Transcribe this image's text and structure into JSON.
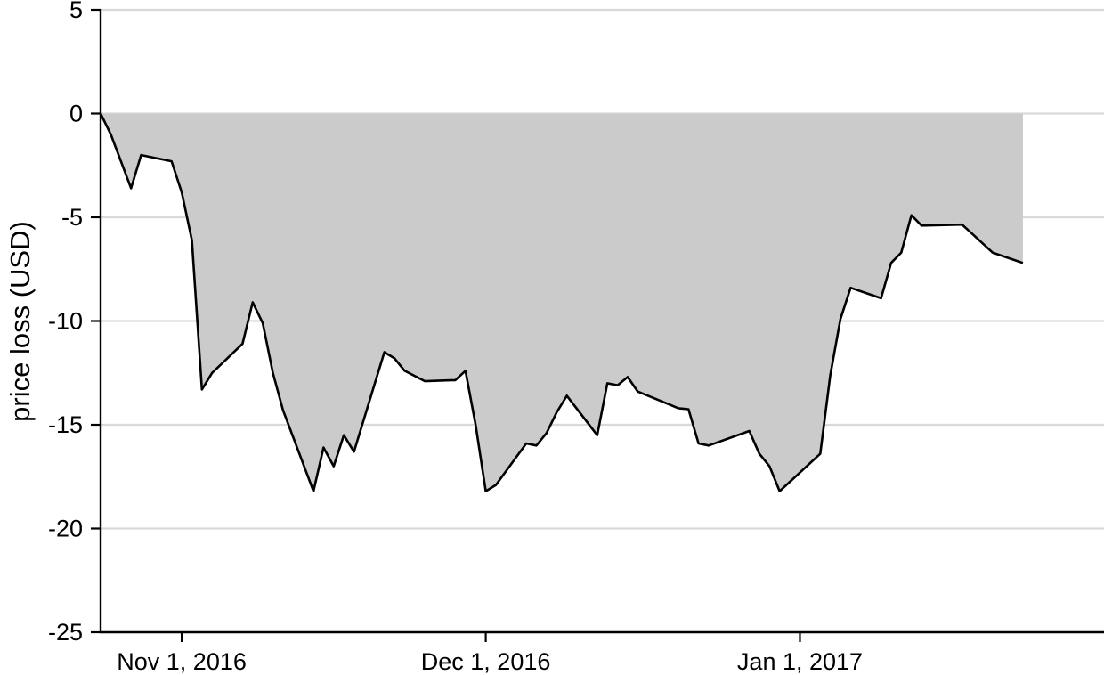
{
  "chart_data": {
    "type": "area",
    "title": "",
    "xlabel": "",
    "ylabel": "price loss (USD)",
    "ylim": [
      -25,
      5
    ],
    "yticks": [
      5,
      0,
      -5,
      -10,
      -15,
      -20,
      -25
    ],
    "ytick_labels": [
      "5",
      "0",
      "-5",
      "-10",
      "-15",
      "-20",
      "-25"
    ],
    "xlim": [
      "2016-10-24",
      "2017-01-31"
    ],
    "xticks": [
      "2016-11-01",
      "2016-12-01",
      "2017-01-01"
    ],
    "xtick_labels": [
      "Nov 1, 2016",
      "Dec 1, 2016",
      "Jan 1, 2017"
    ],
    "grid": "horizontal",
    "baseline": 0,
    "colors": {
      "fill": "#cbcbcb",
      "line": "#000000",
      "grid": "#d9d9d9",
      "axis": "#000000"
    },
    "series": [
      {
        "name": "price loss",
        "x": [
          "2016-10-24",
          "2016-10-25",
          "2016-10-26",
          "2016-10-27",
          "2016-10-28",
          "2016-10-31",
          "2016-11-01",
          "2016-11-02",
          "2016-11-03",
          "2016-11-04",
          "2016-11-07",
          "2016-11-08",
          "2016-11-09",
          "2016-11-10",
          "2016-11-11",
          "2016-11-14",
          "2016-11-15",
          "2016-11-16",
          "2016-11-17",
          "2016-11-18",
          "2016-11-21",
          "2016-11-22",
          "2016-11-23",
          "2016-11-25",
          "2016-11-28",
          "2016-11-29",
          "2016-11-30",
          "2016-12-01",
          "2016-12-02",
          "2016-12-05",
          "2016-12-06",
          "2016-12-07",
          "2016-12-08",
          "2016-12-09",
          "2016-12-12",
          "2016-12-13",
          "2016-12-14",
          "2016-12-15",
          "2016-12-16",
          "2016-12-19",
          "2016-12-20",
          "2016-12-21",
          "2016-12-22",
          "2016-12-23",
          "2016-12-27",
          "2016-12-28",
          "2016-12-29",
          "2016-12-30",
          "2017-01-03",
          "2017-01-04",
          "2017-01-05",
          "2017-01-06",
          "2017-01-09",
          "2017-01-10",
          "2017-01-11",
          "2017-01-12",
          "2017-01-13",
          "2017-01-17",
          "2017-01-18",
          "2017-01-19",
          "2017-01-20",
          "2017-01-23"
        ],
        "values": [
          0,
          -1,
          -2.3,
          -3.6,
          -2,
          -2.3,
          -3.8,
          -6.1,
          -13.3,
          -12.5,
          -11.1,
          -9.1,
          -10.1,
          -12.5,
          -14.3,
          -18.2,
          -16.1,
          -17,
          -15.5,
          -16.3,
          -11.5,
          -11.8,
          -12.4,
          -12.9,
          -12.85,
          -12.4,
          -15,
          -18.2,
          -17.9,
          -15.9,
          -16,
          -15.4,
          -14.4,
          -13.6,
          -15.5,
          -13,
          -13.1,
          -12.7,
          -13.4,
          -14,
          -14.2,
          -14.25,
          -15.9,
          -16,
          -15.3,
          -16.4,
          -17,
          -18.2,
          -16.4,
          -12.6,
          -9.9,
          -8.4,
          -8.9,
          -7.2,
          -6.7,
          -4.9,
          -5.4,
          -5.35,
          -5.8,
          -6.25,
          -6.7,
          -7.2
        ]
      }
    ]
  }
}
